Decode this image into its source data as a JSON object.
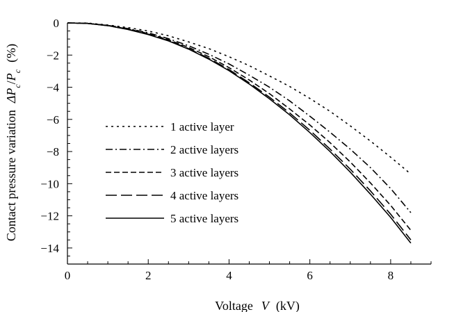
{
  "chart_data": {
    "type": "line",
    "xlabel": {
      "prefix": "Voltage",
      "symbol": "V",
      "unit": "(kV)"
    },
    "ylabel": {
      "prefix": "Contact pressure variation",
      "symbol": "ΔP",
      "sub": "c",
      "slash": "/",
      "symbol2": "P",
      "sub2": "c",
      "unit": "(%)"
    },
    "xlim": [
      0,
      9
    ],
    "ylim": [
      -15,
      0
    ],
    "xticks": [
      "0",
      "2",
      "4",
      "6",
      "8"
    ],
    "yticks": [
      "0",
      "−2",
      "−4",
      "−6",
      "−8",
      "−10",
      "−12",
      "−14"
    ],
    "grid": false,
    "legend_position": "center-left",
    "series": [
      {
        "name": "1 active layer",
        "dash": "3,5",
        "x": [
          0,
          0.5,
          1,
          1.5,
          2,
          2.5,
          3,
          3.5,
          4,
          4.5,
          5,
          5.5,
          6,
          6.5,
          7,
          7.5,
          8,
          8.5
        ],
        "y": [
          0,
          -0.01,
          -0.13,
          -0.29,
          -0.5,
          -0.8,
          -1.18,
          -1.6,
          -2.1,
          -2.66,
          -3.3,
          -3.95,
          -4.7,
          -5.5,
          -6.4,
          -7.35,
          -8.35,
          -9.4
        ]
      },
      {
        "name": "2 active layers",
        "dash": "10,4,2,4",
        "x": [
          0,
          0.5,
          1,
          1.5,
          2,
          2.5,
          3,
          3.5,
          4,
          4.5,
          5,
          5.5,
          6,
          6.5,
          7,
          7.5,
          8,
          8.5
        ],
        "y": [
          0,
          -0.03,
          -0.15,
          -0.35,
          -0.62,
          -0.98,
          -1.42,
          -1.95,
          -2.55,
          -3.25,
          -4.0,
          -4.85,
          -5.8,
          -6.8,
          -7.85,
          -9.0,
          -10.3,
          -11.8
        ]
      },
      {
        "name": "3 active layers",
        "dash": "8,4",
        "x": [
          0,
          0.5,
          1,
          1.5,
          2,
          2.5,
          3,
          3.5,
          4,
          4.5,
          5,
          5.5,
          6,
          6.5,
          7,
          7.5,
          8,
          8.5
        ],
        "y": [
          0,
          -0.03,
          -0.16,
          -0.38,
          -0.66,
          -1.05,
          -1.52,
          -2.1,
          -2.78,
          -3.55,
          -4.4,
          -5.35,
          -6.35,
          -7.45,
          -8.65,
          -9.95,
          -11.35,
          -12.9
        ]
      },
      {
        "name": "4 active layers",
        "dash": "16,6",
        "x": [
          0,
          0.5,
          1,
          1.5,
          2,
          2.5,
          3,
          3.5,
          4,
          4.5,
          5,
          5.5,
          6,
          6.5,
          7,
          7.5,
          8,
          8.5
        ],
        "y": [
          0,
          -0.03,
          -0.17,
          -0.4,
          -0.7,
          -1.1,
          -1.6,
          -2.2,
          -2.9,
          -3.72,
          -4.62,
          -5.6,
          -6.68,
          -7.85,
          -9.1,
          -10.45,
          -11.9,
          -13.5
        ]
      },
      {
        "name": "5 active layers",
        "dash": "",
        "x": [
          0,
          0.5,
          1,
          1.5,
          2,
          2.5,
          3,
          3.5,
          4,
          4.5,
          5,
          5.5,
          6,
          6.5,
          7,
          7.5,
          8,
          8.5
        ],
        "y": [
          0,
          -0.03,
          -0.17,
          -0.41,
          -0.72,
          -1.12,
          -1.63,
          -2.25,
          -2.97,
          -3.8,
          -4.72,
          -5.72,
          -6.82,
          -8.0,
          -9.28,
          -10.65,
          -12.1,
          -13.7
        ]
      }
    ]
  }
}
